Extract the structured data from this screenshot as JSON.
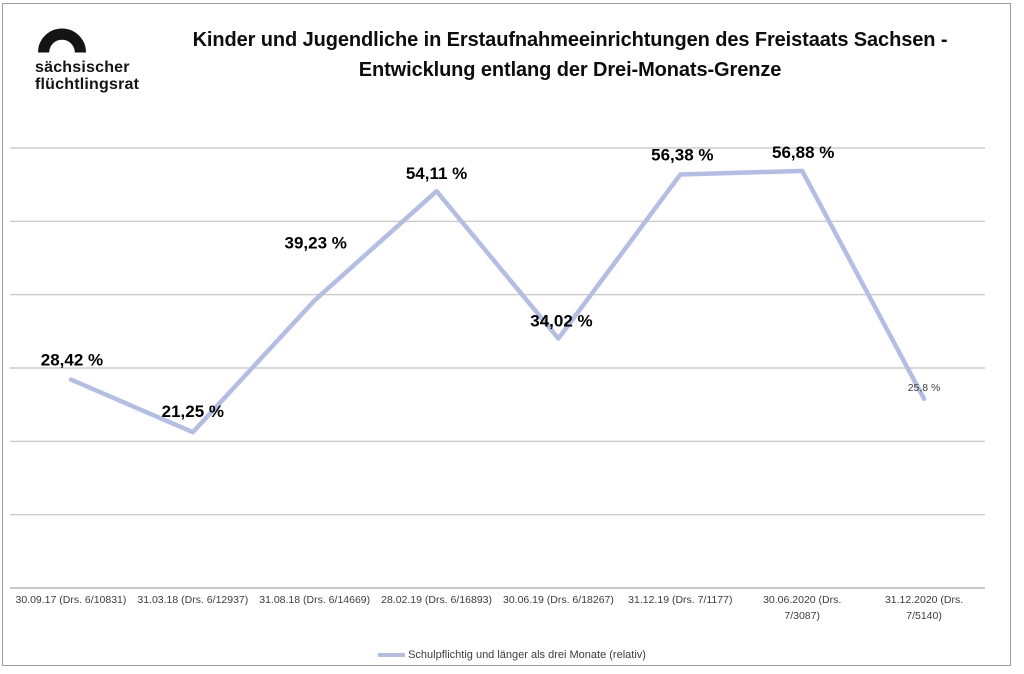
{
  "logo": {
    "line1": "sächsischer",
    "line2": "flüchtlingsrat"
  },
  "title": {
    "line1": "Kinder und Jugendliche in Erstaufnahmeeinrichtungen des Freistaats Sachsen -",
    "line2": "Entwicklung entlang der Drei-Monats-Grenze"
  },
  "legend": {
    "label": "Schulpflichtig und länger als drei Monate (relativ)"
  },
  "colors": {
    "line": "#b3bee2",
    "gridline": "#c2c2c2",
    "axis_line": "#a8a8a8",
    "data_label": "#000000",
    "secondary_text": "#3c3c3c"
  },
  "chart_data": {
    "type": "line",
    "title": "Kinder und Jugendliche in Erstaufnahmeeinrichtungen des Freistaats Sachsen - Entwicklung entlang der Drei-Monats-Grenze",
    "categories": [
      "30.09.17 (Drs. 6/10831)",
      "31.03.18 (Drs. 6/12937)",
      "31.08.18 (Drs. 6/14669)",
      "28.02.19 (Drs. 6/16893)",
      "30.06.19 (Drs. 6/18267)",
      "31.12.19 (Drs. 7/1177)",
      "30.06.2020 (Drs. 7/3087)",
      "31.12.2020 (Drs. 7/5140)"
    ],
    "category_display_lines": [
      [
        "30.09.17 (Drs. 6/10831)"
      ],
      [
        "31.03.18 (Drs. 6/12937)"
      ],
      [
        "31.08.18 (Drs. 6/14669)"
      ],
      [
        "28.02.19 (Drs. 6/16893)"
      ],
      [
        "30.06.19 (Drs. 6/18267)"
      ],
      [
        "31.12.19 (Drs. 7/1177)"
      ],
      [
        "30.06.2020 (Drs.",
        "7/3087)"
      ],
      [
        "31.12.2020 (Drs.",
        "7/5140)"
      ]
    ],
    "series": [
      {
        "name": "Schulpflichtig und länger als drei Monate (relativ)",
        "values": [
          28.42,
          21.25,
          39.23,
          54.11,
          34.02,
          56.38,
          56.88,
          25.8
        ],
        "data_labels": [
          {
            "text": "28,42 %",
            "size": "large"
          },
          {
            "text": "21,25 %",
            "size": "large"
          },
          {
            "text": "39,23 %",
            "size": "large"
          },
          {
            "text": "54,11 %",
            "size": "large"
          },
          {
            "text": "34,02 %",
            "size": "large"
          },
          {
            "text": "56,38 %",
            "size": "large"
          },
          {
            "text": "56,88 %",
            "size": "large"
          },
          {
            "text": "25,8 %",
            "size": "small"
          }
        ]
      }
    ],
    "xlabel": "",
    "ylabel": "",
    "ylim": [
      0,
      60
    ],
    "gridline_step": 10,
    "grid": true,
    "y_axis_labels_visible": false,
    "legend_position": "bottom"
  }
}
